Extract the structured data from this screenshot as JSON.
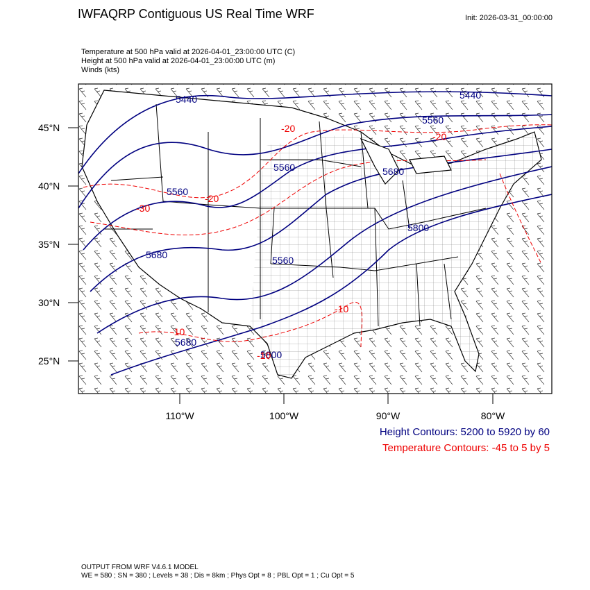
{
  "header": {
    "title": "IWFAQRP Contiguous US Real Time WRF",
    "init": "Init: 2026-03-31_00:00:00"
  },
  "subtitle": {
    "line1": "Temperature at 500 hPa valid at 2026-04-01_23:00:00 UTC   (C)",
    "line2": "Height at 500 hPa valid at 2026-04-01_23:00:00 UTC   (m)",
    "line3": "Winds   (kts)"
  },
  "axes": {
    "lat_labels": [
      "45°N",
      "40°N",
      "35°N",
      "30°N",
      "25°N"
    ],
    "lon_labels": [
      "110°W",
      "100°W",
      "90°W",
      "80°W"
    ]
  },
  "height_labels": [
    "5440",
    "5440",
    "5560",
    "5560",
    "5680",
    "5560",
    "5680",
    "5800",
    "5560",
    "5680",
    "5800"
  ],
  "temp_labels": [
    "-20",
    "-20",
    "-20",
    "-30",
    "-10",
    "-10",
    "-10"
  ],
  "legend": {
    "height": "Height Contours: 5200 to 5920 by 60",
    "temperature": "Temperature Contours: -45 to 5 by 5"
  },
  "footer": {
    "line1": "OUTPUT FROM WRF V4.6.1 MODEL",
    "line2": "WE = 580 ; SN = 380 ; Levels = 38 ; Dis = 8km ; Phys Opt = 8 ; PBL Opt = 1 ; Cu Opt = 5"
  },
  "colors": {
    "height": "#000080",
    "temperature": "#ee0000",
    "boundaries": "#000000"
  }
}
